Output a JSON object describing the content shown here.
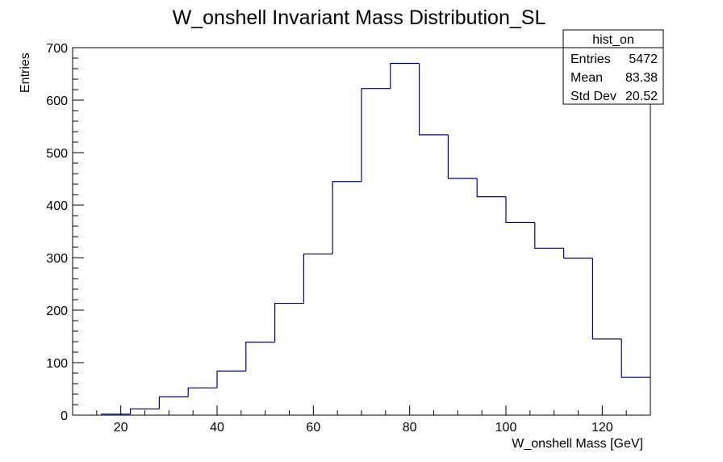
{
  "chart_data": {
    "type": "bar",
    "title": "W_onshell Invariant Mass Distribution_SL",
    "xlabel": "W_onshell Mass [GeV]",
    "ylabel": "Entries",
    "xlim": [
      10,
      130
    ],
    "ylim": [
      0,
      700
    ],
    "xticks": [
      20,
      40,
      60,
      80,
      100,
      120
    ],
    "yticks": [
      0,
      100,
      200,
      300,
      400,
      500,
      600,
      700
    ],
    "bin_edges": [
      16,
      22,
      28,
      34,
      40,
      46,
      52,
      58,
      64,
      70,
      76,
      82,
      88,
      94,
      100,
      106,
      112,
      118,
      124,
      130
    ],
    "values": [
      2,
      12,
      35,
      52,
      84,
      139,
      213,
      307,
      445,
      622,
      670,
      534,
      451,
      416,
      367,
      318,
      299,
      145,
      72
    ],
    "line_color": "#000080",
    "stats_box": {
      "title": "hist_on",
      "rows": [
        {
          "label": "Entries",
          "value": "5472"
        },
        {
          "label": "Mean",
          "value": "83.38"
        },
        {
          "label": "Std Dev",
          "value": "20.52"
        }
      ]
    }
  }
}
